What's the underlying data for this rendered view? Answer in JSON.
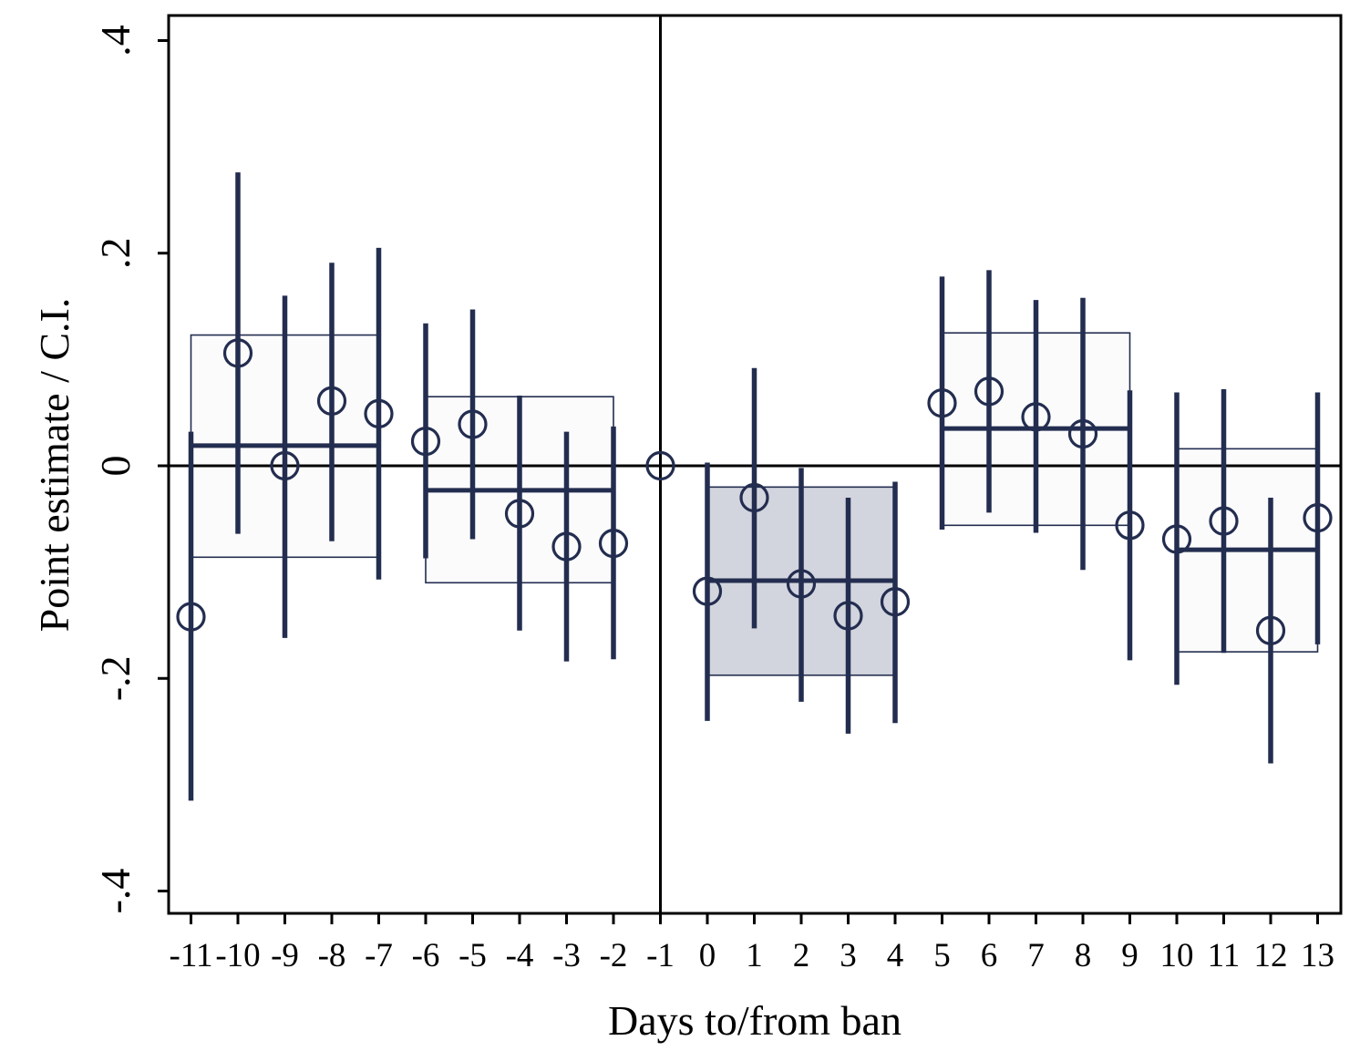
{
  "chart_data": {
    "type": "scatter",
    "title": "",
    "xlabel": "Days to/from ban",
    "ylabel": "Point estimate / C.I.",
    "xlim": [
      -11.5,
      13.5
    ],
    "ylim": [
      -0.42,
      0.42
    ],
    "yticks": [
      {
        "value": -0.4,
        "label": "-.4"
      },
      {
        "value": -0.2,
        "label": "-.2"
      },
      {
        "value": 0,
        "label": "0"
      },
      {
        "value": 0.2,
        "label": ".2"
      },
      {
        "value": 0.4,
        "label": ".4"
      }
    ],
    "xticks": [
      {
        "value": -11,
        "label": "-11"
      },
      {
        "value": -10,
        "label": "-10"
      },
      {
        "value": -9,
        "label": "-9"
      },
      {
        "value": -8,
        "label": "-8"
      },
      {
        "value": -7,
        "label": "-7"
      },
      {
        "value": -6,
        "label": "-6"
      },
      {
        "value": -5,
        "label": "-5"
      },
      {
        "value": -4,
        "label": "-4"
      },
      {
        "value": -3,
        "label": "-3"
      },
      {
        "value": -2,
        "label": "-2"
      },
      {
        "value": -1,
        "label": "-1"
      },
      {
        "value": 0,
        "label": "0"
      },
      {
        "value": 1,
        "label": "1"
      },
      {
        "value": 2,
        "label": "2"
      },
      {
        "value": 3,
        "label": "3"
      },
      {
        "value": 4,
        "label": "4"
      },
      {
        "value": 5,
        "label": "5"
      },
      {
        "value": 6,
        "label": "6"
      },
      {
        "value": 7,
        "label": "7"
      },
      {
        "value": 8,
        "label": "8"
      },
      {
        "value": 9,
        "label": "9"
      },
      {
        "value": 10,
        "label": "10"
      },
      {
        "value": 11,
        "label": "11"
      },
      {
        "value": 12,
        "label": "12"
      },
      {
        "value": 13,
        "label": "13"
      }
    ],
    "reference_lines": {
      "horizontal": 0,
      "vertical": -1
    },
    "points": [
      {
        "x": -11,
        "y": -0.142,
        "lo": -0.315,
        "hi": 0.032
      },
      {
        "x": -10,
        "y": 0.106,
        "lo": -0.064,
        "hi": 0.276
      },
      {
        "x": -9,
        "y": 0.0,
        "lo": -0.162,
        "hi": 0.16
      },
      {
        "x": -8,
        "y": 0.061,
        "lo": -0.071,
        "hi": 0.191
      },
      {
        "x": -7,
        "y": 0.049,
        "lo": -0.107,
        "hi": 0.205
      },
      {
        "x": -6,
        "y": 0.023,
        "lo": -0.087,
        "hi": 0.134
      },
      {
        "x": -5,
        "y": 0.039,
        "lo": -0.069,
        "hi": 0.147
      },
      {
        "x": -4,
        "y": -0.045,
        "lo": -0.155,
        "hi": 0.066
      },
      {
        "x": -3,
        "y": -0.076,
        "lo": -0.184,
        "hi": 0.032
      },
      {
        "x": -2,
        "y": -0.073,
        "lo": -0.182,
        "hi": 0.037
      },
      {
        "x": -1,
        "y": 0.0,
        "lo": null,
        "hi": null
      },
      {
        "x": 0,
        "y": -0.118,
        "lo": -0.24,
        "hi": 0.003
      },
      {
        "x": 1,
        "y": -0.03,
        "lo": -0.153,
        "hi": 0.092
      },
      {
        "x": 2,
        "y": -0.111,
        "lo": -0.222,
        "hi": -0.002
      },
      {
        "x": 3,
        "y": -0.141,
        "lo": -0.252,
        "hi": -0.03
      },
      {
        "x": 4,
        "y": -0.128,
        "lo": -0.242,
        "hi": -0.015
      },
      {
        "x": 5,
        "y": 0.059,
        "lo": -0.06,
        "hi": 0.178
      },
      {
        "x": 6,
        "y": 0.07,
        "lo": -0.044,
        "hi": 0.184
      },
      {
        "x": 7,
        "y": 0.046,
        "lo": -0.063,
        "hi": 0.156
      },
      {
        "x": 8,
        "y": 0.03,
        "lo": -0.098,
        "hi": 0.158
      },
      {
        "x": 9,
        "y": -0.056,
        "lo": -0.183,
        "hi": 0.071
      },
      {
        "x": 10,
        "y": -0.069,
        "lo": -0.206,
        "hi": 0.069
      },
      {
        "x": 11,
        "y": -0.052,
        "lo": -0.176,
        "hi": 0.072
      },
      {
        "x": 12,
        "y": -0.155,
        "lo": -0.28,
        "hi": -0.03
      },
      {
        "x": 13,
        "y": -0.049,
        "lo": -0.168,
        "hi": 0.069
      }
    ],
    "pooled_boxes": [
      {
        "x_start": -11,
        "x_end": -7,
        "estimate": 0.019,
        "lo": -0.086,
        "hi": 0.123,
        "shaded": false
      },
      {
        "x_start": -6,
        "x_end": -2,
        "estimate": -0.023,
        "lo": -0.11,
        "hi": 0.065,
        "shaded": false
      },
      {
        "x_start": 0,
        "x_end": 4,
        "estimate": -0.108,
        "lo": -0.197,
        "hi": -0.02,
        "shaded": true
      },
      {
        "x_start": 5,
        "x_end": 9,
        "estimate": 0.035,
        "lo": -0.056,
        "hi": 0.125,
        "shaded": false
      },
      {
        "x_start": 10,
        "x_end": 13,
        "estimate": -0.079,
        "lo": -0.175,
        "hi": 0.016,
        "shaded": false
      }
    ],
    "grid": false,
    "legend": "none",
    "colors": {
      "marker": "#232d4f",
      "shaded_box_fill": "#d2d5de",
      "unshaded_box_fill": "#fbfbfc",
      "axis": "#000000"
    }
  }
}
